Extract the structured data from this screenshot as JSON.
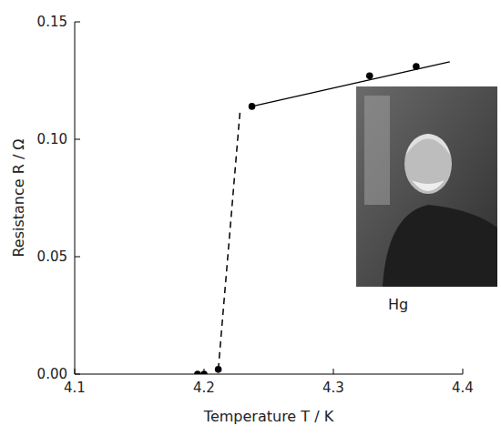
{
  "chart_data": {
    "type": "scatter",
    "x_label": "Temperature T / K",
    "y_label": "Resistance R / Ω",
    "annotation": "Hg",
    "xlim": [
      4.1,
      4.4
    ],
    "xticks": [
      4.1,
      4.2,
      4.3,
      4.4
    ],
    "ylim": [
      0,
      0.15
    ],
    "yticks": [
      {
        "value": 0,
        "label": "0.00"
      },
      {
        "value": 0.05,
        "label": "0.05"
      },
      {
        "value": 0.1,
        "label": "0.10"
      },
      {
        "value": 0.15,
        "label": "0.15"
      }
    ],
    "grid": false,
    "series": [
      {
        "type": "scatter",
        "marker": "circle",
        "color": "#000000",
        "x": [
          4.195,
          4.2,
          4.211,
          4.237,
          4.328,
          4.364
        ],
        "values": [
          0,
          0,
          0.002,
          0.114,
          0.127,
          0.131
        ]
      },
      {
        "type": "line",
        "line_style": "solid",
        "color": "#000000",
        "x": [
          4.237,
          4.39
        ],
        "values": [
          0.114,
          0.133
        ]
      },
      {
        "type": "line",
        "line_style": "dashed",
        "color": "#000000",
        "x": [
          4.211,
          4.228
        ],
        "values": [
          0.002,
          0.113
        ]
      }
    ]
  }
}
